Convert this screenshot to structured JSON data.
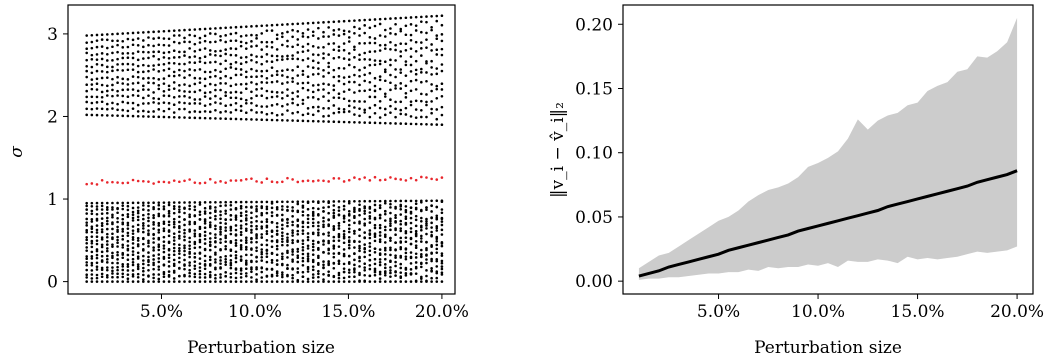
{
  "chart_data": [
    {
      "type": "scatter",
      "title": "",
      "xlabel": "Perturbation size",
      "ylabel": "σ",
      "xlim": [
        0.0,
        20.7
      ],
      "ylim": [
        -0.15,
        3.35
      ],
      "grid": false,
      "x_ticks": [
        {
          "value": 5,
          "label": "5.0%"
        },
        {
          "value": 10,
          "label": "10.0%"
        },
        {
          "value": 15,
          "label": "15.0%"
        },
        {
          "value": 20,
          "label": "20.0%"
        }
      ],
      "y_ticks": [
        {
          "value": 0,
          "label": "0"
        },
        {
          "value": 1,
          "label": "1"
        },
        {
          "value": 2,
          "label": "2"
        },
        {
          "value": 3,
          "label": "3"
        }
      ],
      "x_start": 1,
      "x_end": 20,
      "columns": 70,
      "groups": [
        {
          "color": "#000000",
          "count": 22,
          "low_start": 0.0,
          "low_end": 0.0,
          "high_start": 0.95,
          "high_end": 0.98
        },
        {
          "color": "#e8262c",
          "count": 1,
          "low_start": 1.2,
          "low_end": 1.25,
          "high_start": 1.2,
          "high_end": 1.25
        },
        {
          "color": "#000000",
          "count": 14,
          "low_start": 2.02,
          "low_end": 1.9,
          "high_start": 2.98,
          "high_end": 3.22
        }
      ]
    },
    {
      "type": "area",
      "title": "",
      "xlabel": "Perturbation size",
      "ylabel": "‖v_i − v̂_i‖₂",
      "xlim": [
        0.2,
        20.8
      ],
      "ylim": [
        -0.01,
        0.215
      ],
      "grid": false,
      "x_ticks": [
        {
          "value": 5,
          "label": "5.0%"
        },
        {
          "value": 10,
          "label": "10.0%"
        },
        {
          "value": 15,
          "label": "15.0%"
        },
        {
          "value": 20,
          "label": "20.0%"
        }
      ],
      "y_ticks": [
        {
          "value": 0.0,
          "label": "0.00"
        },
        {
          "value": 0.05,
          "label": "0.05"
        },
        {
          "value": 0.1,
          "label": "0.10"
        },
        {
          "value": 0.15,
          "label": "0.15"
        },
        {
          "value": 0.2,
          "label": "0.20"
        }
      ],
      "x": [
        1,
        1.5,
        2,
        2.5,
        3,
        3.5,
        4,
        4.5,
        5,
        5.5,
        6,
        6.5,
        7,
        7.5,
        8,
        8.5,
        9,
        9.5,
        10,
        10.5,
        11,
        11.5,
        12,
        12.5,
        13,
        13.5,
        14,
        14.5,
        15,
        15.5,
        16,
        16.5,
        17,
        17.5,
        18,
        18.5,
        19,
        19.5,
        20
      ],
      "series": [
        {
          "values": [
            0.004,
            0.006,
            0.008,
            0.011,
            0.013,
            0.015,
            0.017,
            0.019,
            0.021,
            0.024,
            0.026,
            0.028,
            0.03,
            0.032,
            0.034,
            0.036,
            0.039,
            0.041,
            0.043,
            0.045,
            0.047,
            0.049,
            0.051,
            0.053,
            0.055,
            0.058,
            0.06,
            0.062,
            0.064,
            0.066,
            0.068,
            0.07,
            0.072,
            0.074,
            0.077,
            0.079,
            0.081,
            0.083,
            0.086
          ]
        },
        {
          "values": [
            0.01,
            0.015,
            0.02,
            0.022,
            0.027,
            0.032,
            0.037,
            0.042,
            0.047,
            0.05,
            0.055,
            0.062,
            0.067,
            0.071,
            0.073,
            0.076,
            0.081,
            0.089,
            0.092,
            0.096,
            0.101,
            0.111,
            0.126,
            0.118,
            0.125,
            0.129,
            0.131,
            0.137,
            0.139,
            0.148,
            0.152,
            0.155,
            0.163,
            0.165,
            0.175,
            0.174,
            0.179,
            0.186,
            0.205
          ]
        },
        {
          "values": [
            0.001,
            0.002,
            0.002,
            0.003,
            0.003,
            0.004,
            0.005,
            0.006,
            0.006,
            0.007,
            0.007,
            0.009,
            0.008,
            0.011,
            0.01,
            0.011,
            0.011,
            0.013,
            0.012,
            0.014,
            0.011,
            0.016,
            0.015,
            0.015,
            0.017,
            0.016,
            0.014,
            0.019,
            0.017,
            0.018,
            0.017,
            0.018,
            0.019,
            0.021,
            0.023,
            0.022,
            0.023,
            0.024,
            0.027
          ]
        }
      ],
      "line_color": "#000000",
      "band_color": "#cccccc"
    }
  ]
}
